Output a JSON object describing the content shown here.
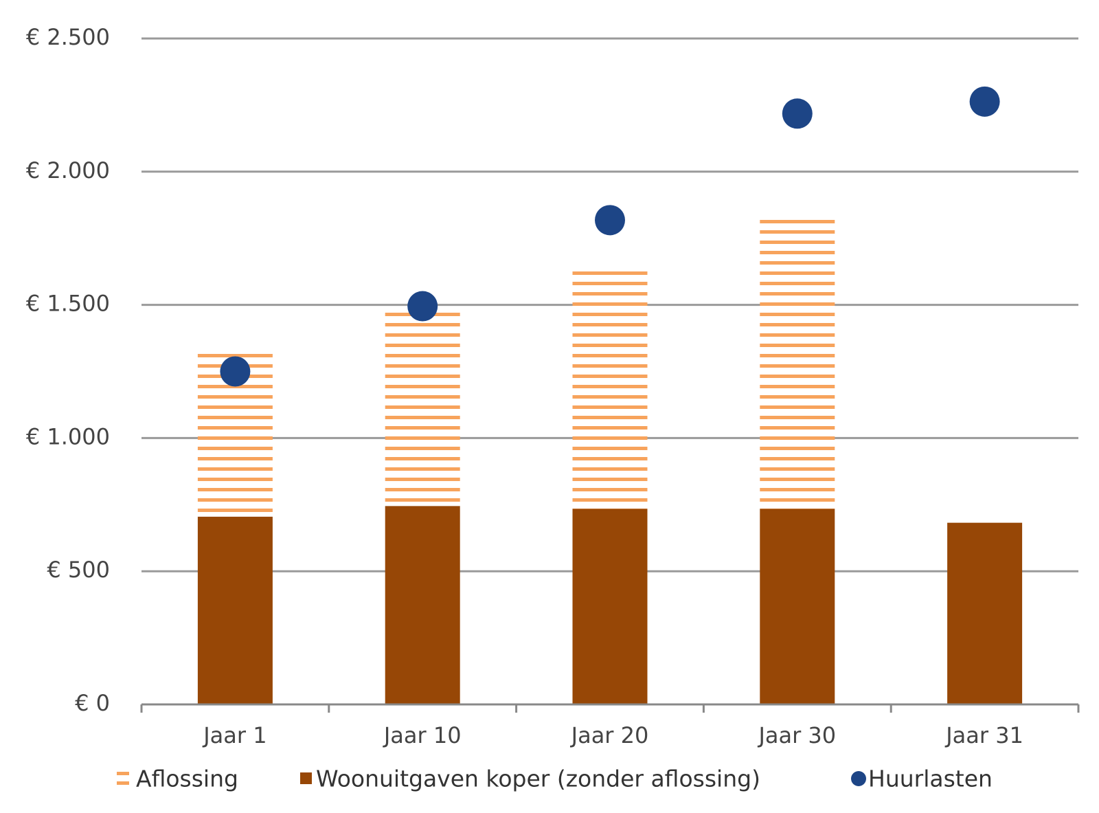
{
  "chart_data": {
    "type": "bar",
    "stacked": true,
    "categories": [
      "Jaar 1",
      "Jaar 10",
      "Jaar 20",
      "Jaar 30",
      "Jaar 31"
    ],
    "series": [
      {
        "name": "Woonuitgaven koper (zonder aflossing)",
        "color": "#974706",
        "fill": "solid",
        "values": [
          705,
          745,
          734,
          734,
          682
        ]
      },
      {
        "name": "Aflossing",
        "color": "#f7a35c",
        "fill": "stripes",
        "values": [
          629,
          734,
          903,
          1092,
          null
        ]
      },
      {
        "name": "Huurlasten",
        "color": "#1d4586",
        "type": "dot",
        "values": [
          1250,
          1495,
          1818,
          2218,
          2263
        ]
      }
    ],
    "legend_order": [
      1,
      0,
      2
    ],
    "ylim": [
      0,
      2500
    ],
    "yticks": [
      {
        "value": 0,
        "label": "€ 0"
      },
      {
        "value": 500,
        "label": "€ 500"
      },
      {
        "value": 1000,
        "label": "€ 1.000"
      },
      {
        "value": 1500,
        "label": "€ 1.500"
      },
      {
        "value": 2000,
        "label": "€ 2.000"
      },
      {
        "value": 2500,
        "label": "€ 2.500"
      }
    ],
    "grid": true
  }
}
